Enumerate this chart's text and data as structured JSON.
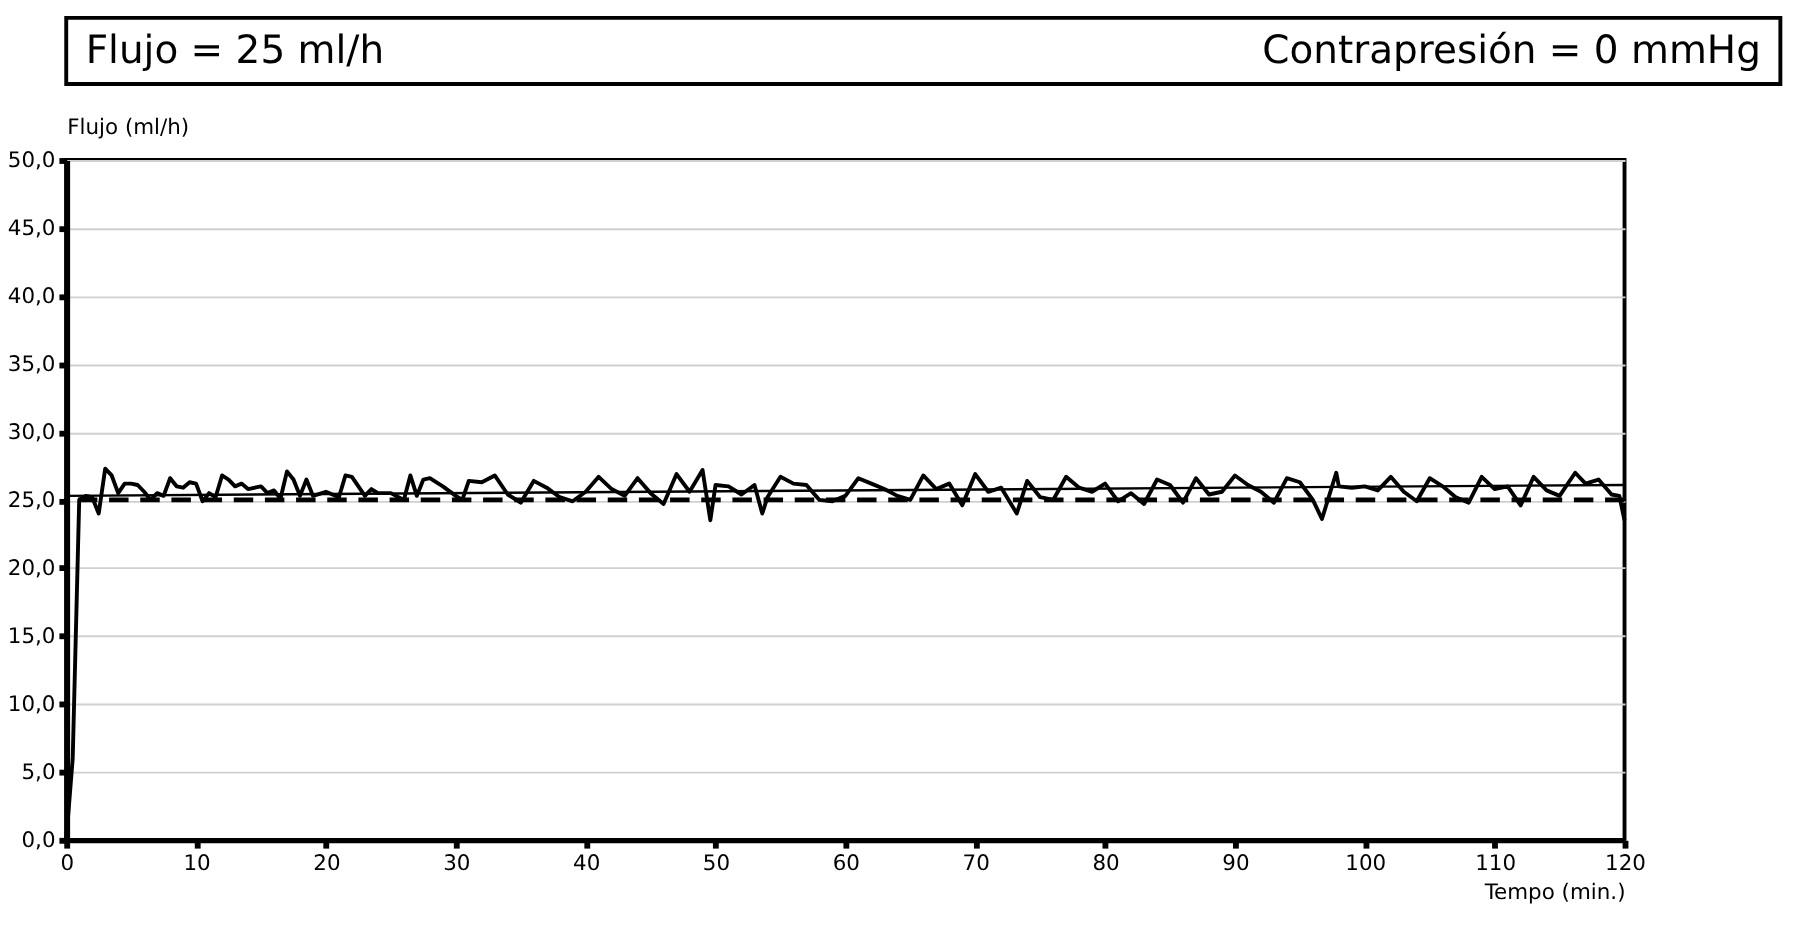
{
  "chart_data": {
    "type": "line",
    "title": "Flujo = 25 ml/h",
    "subtitle": "Contrapresión = 0 mmHg",
    "xlabel": "Tempo (min.)",
    "ylabel": "Flujo (ml/h)",
    "xlim": [
      0,
      120
    ],
    "xticks": [
      0,
      10,
      20,
      30,
      40,
      50,
      60,
      70,
      80,
      90,
      100,
      110,
      120
    ],
    "ylim": [
      0,
      50
    ],
    "yticks": [
      {
        "value": 0,
        "label": "0,0"
      },
      {
        "value": 5,
        "label": "5,0"
      },
      {
        "value": 10,
        "label": "10,0"
      },
      {
        "value": 15,
        "label": "15,0"
      },
      {
        "value": 20,
        "label": "20,0"
      },
      {
        "value": 25,
        "label": "25,0"
      },
      {
        "value": 30,
        "label": "30,0"
      },
      {
        "value": 35,
        "label": "35,0"
      },
      {
        "value": 40,
        "label": "40,0"
      },
      {
        "value": 45,
        "label": "45,0"
      },
      {
        "value": 50,
        "label": "50,0"
      }
    ],
    "grid": "y",
    "marker": "none",
    "series": [
      {
        "color": "#000000",
        "line_style": "solid",
        "x": [
          0,
          0.5,
          1,
          1.5,
          2,
          2.5,
          3,
          3.5,
          4,
          4.5,
          5,
          5.5,
          6,
          6.5,
          7,
          7.5,
          8,
          8.5,
          9,
          9.5,
          10,
          10.5,
          11,
          11.5,
          12,
          12.5,
          13,
          13.5,
          14,
          15,
          15.5,
          16,
          16.5,
          17,
          17.5,
          18,
          18.5,
          19,
          20,
          21,
          21.5,
          22,
          23,
          23.5,
          24,
          25,
          26,
          26.5,
          27,
          27.5,
          28,
          29,
          30,
          30.5,
          31,
          32,
          33,
          34,
          35,
          36,
          37,
          38,
          39,
          40,
          41,
          42,
          43,
          44,
          45,
          46,
          47,
          48,
          49,
          49.6,
          50,
          51,
          52,
          53,
          53.6,
          54,
          55,
          56,
          57,
          58,
          59,
          60,
          61,
          62,
          63,
          64,
          65,
          66,
          67,
          68,
          69,
          70,
          71,
          72,
          73.2,
          74,
          75,
          76,
          77,
          78,
          79,
          80,
          81,
          82,
          83,
          84,
          85,
          86,
          87,
          88,
          89,
          90,
          91,
          92,
          93,
          94,
          95,
          96,
          96.7,
          97.8,
          98,
          99,
          100,
          101,
          102,
          103,
          104,
          105,
          106,
          107,
          108,
          109,
          110,
          111,
          112,
          113,
          114,
          115,
          116.2,
          117,
          118,
          119,
          119.6,
          120
        ],
        "values": [
          0,
          6,
          25,
          25.3,
          25.2,
          24,
          27.3,
          26.8,
          25.5,
          26.2,
          26.2,
          26.1,
          25.6,
          25,
          25.5,
          25.3,
          26.6,
          26,
          25.9,
          26.3,
          26.2,
          24.9,
          25.5,
          25.2,
          26.8,
          26.5,
          26,
          26.2,
          25.8,
          26,
          25.5,
          25.7,
          25.1,
          27.1,
          26.5,
          25.3,
          26.5,
          25.3,
          25.6,
          25.2,
          26.8,
          26.7,
          25.3,
          25.8,
          25.5,
          25.5,
          25,
          26.8,
          25.3,
          26.5,
          26.6,
          26,
          25.3,
          25,
          26.4,
          26.3,
          26.8,
          25.4,
          24.8,
          26.4,
          25.9,
          25.2,
          24.9,
          25.6,
          26.7,
          25.8,
          25.3,
          26.6,
          25.5,
          24.7,
          26.9,
          25.6,
          27.2,
          23.5,
          26.1,
          26.0,
          25.4,
          26.1,
          24.0,
          25.2,
          26.7,
          26.2,
          26.1,
          25.0,
          24.9,
          25.3,
          26.6,
          26.2,
          25.8,
          25.3,
          25.0,
          26.8,
          25.8,
          26.2,
          24.6,
          26.9,
          25.6,
          25.9,
          24.0,
          26.4,
          25.2,
          25.0,
          26.7,
          25.9,
          25.6,
          26.2,
          24.9,
          25.5,
          24.7,
          26.5,
          26.1,
          24.8,
          26.6,
          25.4,
          25.6,
          26.8,
          26.1,
          25.6,
          24.8,
          26.6,
          26.3,
          25.0,
          23.6,
          27.0,
          26.0,
          25.9,
          26.0,
          25.7,
          26.7,
          25.6,
          24.9,
          26.6,
          26.0,
          25.2,
          24.8,
          26.7,
          25.8,
          26.0,
          24.6,
          26.7,
          25.7,
          25.3,
          27.0,
          26.2,
          26.5,
          25.4,
          25.3,
          23.5
        ]
      },
      {
        "color": "#000000",
        "line_style": "solid",
        "x": [
          0,
          120
        ],
        "values": [
          25.3,
          26.1
        ]
      }
    ],
    "ref_lines": [
      {
        "axis": "y",
        "value": 25,
        "color": "#000000",
        "line_style": "dashed"
      }
    ]
  }
}
